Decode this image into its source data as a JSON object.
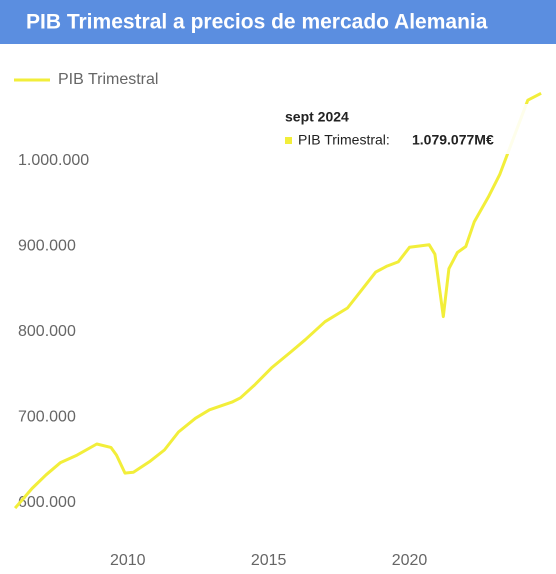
{
  "chart_data": {
    "type": "line",
    "title": "PIB Trimestral a precios de mercado Alemania",
    "series": [
      {
        "name": "PIB Trimestral",
        "color": "#f2ee3a",
        "x": [
          2006.0,
          2006.6,
          2007.1,
          2007.6,
          2008.2,
          2008.9,
          2009.4,
          2009.6,
          2009.9,
          2010.2,
          2010.8,
          2011.3,
          2011.8,
          2012.4,
          2012.9,
          2013.7,
          2014.0,
          2014.5,
          2015.1,
          2015.8,
          2016.3,
          2017.0,
          2017.8,
          2018.3,
          2018.8,
          2019.2,
          2019.6,
          2020.0,
          2020.7,
          2020.9,
          2021.2,
          2021.4,
          2021.7,
          2022.0,
          2022.3,
          2022.8,
          2023.2,
          2024.2,
          2024.67
        ],
        "values": [
          594000,
          617000,
          633000,
          647000,
          656000,
          669000,
          665000,
          656000,
          635000,
          636000,
          649000,
          662000,
          683000,
          699000,
          709000,
          718000,
          723000,
          738000,
          758000,
          777000,
          791000,
          812000,
          828000,
          849000,
          870000,
          877000,
          882000,
          899000,
          902000,
          891000,
          818000,
          874000,
          893000,
          900000,
          929000,
          958000,
          984000,
          1071000,
          1079077
        ]
      }
    ],
    "xlim": [
      2005.5,
      2025.2
    ],
    "xticks": [
      2010,
      2015,
      2020
    ],
    "ylim": [
      530000,
      1090000
    ],
    "yticks": [
      {
        "value": 600000,
        "label": "600.000"
      },
      {
        "value": 700000,
        "label": "700.000"
      },
      {
        "value": 800000,
        "label": "800.000"
      },
      {
        "value": 900000,
        "label": "900.000"
      },
      {
        "value": 1000000,
        "label": "1.000.000"
      }
    ],
    "legend": "top-left",
    "tooltip": {
      "title": "sept 2024",
      "label": "PIB Trimestral:",
      "value": "1.079.077M€"
    }
  }
}
